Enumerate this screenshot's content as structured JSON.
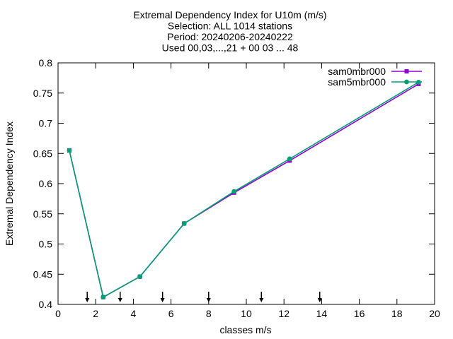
{
  "chart_data": {
    "type": "line",
    "title_lines": [
      "Extremal Dependency Index  for U10m (m/s)",
      "Selection: ALL   1014 stations",
      "Period: 20240206-20240222",
      "Used 00,03,...,21 + 00 03 ... 48"
    ],
    "xlabel": "classes m/s",
    "ylabel": "Extremal Dependency Index",
    "xlim": [
      0,
      20
    ],
    "ylim": [
      0.4,
      0.8
    ],
    "xticks": [
      "0",
      "2",
      "4",
      "6",
      "8",
      "10",
      "12",
      "14",
      "16",
      "18",
      "20"
    ],
    "yticks": [
      "0.4",
      "0.45",
      "0.5",
      "0.55",
      "0.6",
      "0.65",
      "0.7",
      "0.75",
      "0.8"
    ],
    "legend_position": "top-right",
    "grid": false,
    "series": [
      {
        "name": "sam0mbr000",
        "color": "#9400d3",
        "x": [
          0.6,
          2.4,
          4.35,
          6.7,
          9.35,
          12.3,
          19.15
        ],
        "y": [
          0.655,
          0.412,
          0.446,
          0.534,
          0.585,
          0.638,
          0.765
        ]
      },
      {
        "name": "sam5mbr000",
        "color": "#009e73",
        "x": [
          0.6,
          2.4,
          4.35,
          6.7,
          9.35,
          12.3,
          19.15
        ],
        "y": [
          0.655,
          0.412,
          0.446,
          0.534,
          0.587,
          0.641,
          0.768
        ]
      }
    ],
    "arrow_markers_x": [
      1.55,
      3.3,
      5.55,
      8.0,
      10.8,
      13.9
    ]
  }
}
